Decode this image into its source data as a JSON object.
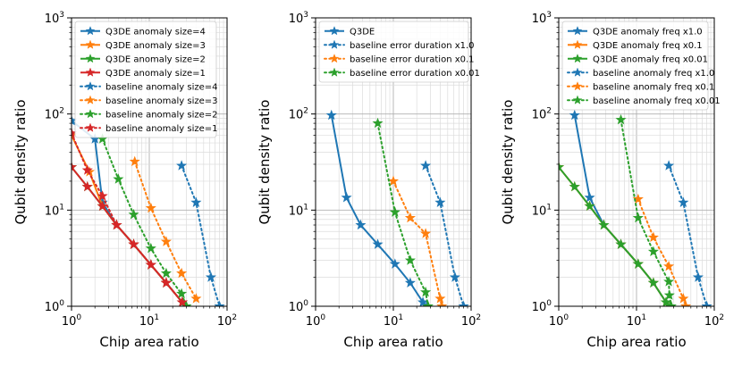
{
  "colors": {
    "blue": "#1f77b4",
    "orange": "#ff7f0e",
    "green": "#2ca02c",
    "red": "#d62728"
  },
  "chart_data": [
    {
      "type": "line",
      "xscale": "log",
      "yscale": "log",
      "xlim": [
        1,
        100
      ],
      "ylim": [
        1,
        1000
      ],
      "xlabel": "Chip area ratio",
      "ylabel": "Qubit density ratio",
      "xticks": [
        "10^0",
        "10^1",
        "10^2"
      ],
      "yticks": [
        "10^0",
        "10^1",
        "10^2",
        "10^3"
      ],
      "grid": true,
      "legend_position": "top-left",
      "series": [
        {
          "name": "Q3DE anomaly size=4",
          "color": "blue",
          "style": "solid",
          "points": [
            [
              1.0,
              85
            ],
            [
              2.0,
              55
            ],
            [
              2.5,
              12
            ],
            [
              3.8,
              7
            ],
            [
              6.3,
              4.4
            ],
            [
              10.5,
              2.7
            ],
            [
              16.5,
              1.75
            ],
            [
              26.5,
              1.1
            ]
          ]
        },
        {
          "name": "Q3DE anomaly size=3",
          "color": "orange",
          "style": "solid",
          "points": [
            [
              1.0,
              60
            ],
            [
              1.7,
              25
            ],
            [
              2.5,
              11
            ],
            [
              3.8,
              7
            ],
            [
              6.3,
              4.4
            ],
            [
              10.5,
              2.7
            ],
            [
              16.5,
              1.75
            ],
            [
              26.5,
              1.1
            ]
          ]
        },
        {
          "name": "Q3DE anomaly size=2",
          "color": "green",
          "style": "solid",
          "points": [
            [
              1.0,
              28
            ],
            [
              1.6,
              17.5
            ],
            [
              2.5,
              11
            ],
            [
              3.8,
              7
            ],
            [
              6.3,
              4.4
            ],
            [
              10.5,
              2.7
            ],
            [
              16.5,
              1.75
            ],
            [
              26.5,
              1.1
            ]
          ]
        },
        {
          "name": "Q3DE anomaly size=1",
          "color": "red",
          "style": "solid",
          "points": [
            [
              1.0,
              28
            ],
            [
              1.6,
              17.5
            ],
            [
              2.5,
              11
            ],
            [
              3.8,
              7
            ],
            [
              6.3,
              4.4
            ],
            [
              10.5,
              2.7
            ],
            [
              16.5,
              1.75
            ],
            [
              26.5,
              1.1
            ]
          ]
        },
        {
          "name": "baseline anomaly size=4",
          "color": "blue",
          "style": "dotted",
          "points": [
            [
              26,
              29
            ],
            [
              40,
              12
            ],
            [
              62,
              2.0
            ],
            [
              80,
              1.0
            ]
          ]
        },
        {
          "name": "baseline anomaly size=3",
          "color": "orange",
          "style": "dotted",
          "points": [
            [
              6.5,
              32
            ],
            [
              10.5,
              10.5
            ],
            [
              16.5,
              4.7
            ],
            [
              26,
              2.2
            ],
            [
              40,
              1.2
            ]
          ]
        },
        {
          "name": "baseline anomaly size=2",
          "color": "green",
          "style": "dotted",
          "points": [
            [
              2.5,
              55
            ],
            [
              4.0,
              21
            ],
            [
              6.3,
              9.0
            ],
            [
              10.5,
              4.0
            ],
            [
              16.5,
              2.2
            ],
            [
              26,
              1.35
            ],
            [
              30,
              1.0
            ]
          ]
        },
        {
          "name": "baseline anomaly size=1",
          "color": "red",
          "style": "dotted",
          "points": [
            [
              1.0,
              63
            ],
            [
              1.6,
              26
            ],
            [
              2.5,
              14
            ],
            [
              3.8,
              7
            ],
            [
              6.3,
              4.4
            ],
            [
              10.5,
              2.7
            ],
            [
              16.5,
              1.75
            ],
            [
              26.5,
              1.1
            ]
          ]
        }
      ]
    },
    {
      "type": "line",
      "xscale": "log",
      "yscale": "log",
      "xlim": [
        1,
        100
      ],
      "ylim": [
        1,
        1000
      ],
      "xlabel": "Chip area ratio",
      "ylabel": "Qubit density ratio",
      "xticks": [
        "10^0",
        "10^1",
        "10^2"
      ],
      "yticks": [
        "10^0",
        "10^1",
        "10^2",
        "10^3"
      ],
      "grid": true,
      "legend_position": "top-right",
      "series": [
        {
          "name": "Q3DE",
          "color": "blue",
          "style": "solid",
          "points": [
            [
              1.6,
              97
            ],
            [
              2.5,
              13.5
            ],
            [
              3.8,
              7
            ],
            [
              6.3,
              4.4
            ],
            [
              10.5,
              2.75
            ],
            [
              16.5,
              1.75
            ],
            [
              24,
              1.1
            ],
            [
              27,
              1.0
            ]
          ]
        },
        {
          "name": "baseline error duration x1.0",
          "color": "blue",
          "style": "dotted",
          "points": [
            [
              26,
              29
            ],
            [
              40,
              12
            ],
            [
              62,
              2.0
            ],
            [
              80,
              1.0
            ]
          ]
        },
        {
          "name": "baseline error duration x0.1",
          "color": "orange",
          "style": "dotted",
          "points": [
            [
              10,
              20
            ],
            [
              16.5,
              8.3
            ],
            [
              26,
              5.7
            ],
            [
              40,
              1.2
            ],
            [
              42,
              1.0
            ]
          ]
        },
        {
          "name": "baseline error duration x0.01",
          "color": "green",
          "style": "dotted",
          "points": [
            [
              6.3,
              80
            ],
            [
              10.5,
              9.5
            ],
            [
              16.5,
              3.0
            ],
            [
              26,
              1.4
            ],
            [
              28,
              1.0
            ]
          ]
        }
      ]
    },
    {
      "type": "line",
      "xscale": "log",
      "yscale": "log",
      "xlim": [
        1,
        100
      ],
      "ylim": [
        1,
        1000
      ],
      "xlabel": "Chip area ratio",
      "ylabel": "Qubit density ratio",
      "xticks": [
        "10^0",
        "10^1",
        "10^2"
      ],
      "yticks": [
        "10^0",
        "10^1",
        "10^2",
        "10^3"
      ],
      "grid": true,
      "legend_position": "top-right",
      "series": [
        {
          "name": "Q3DE anomaly freq x1.0",
          "color": "blue",
          "style": "solid",
          "points": [
            [
              1.6,
              97
            ],
            [
              2.5,
              13.5
            ],
            [
              3.8,
              7
            ],
            [
              6.3,
              4.4
            ],
            [
              10.5,
              2.75
            ],
            [
              16.5,
              1.75
            ],
            [
              24,
              1.1
            ],
            [
              27,
              1.0
            ]
          ]
        },
        {
          "name": "Q3DE anomaly freq x0.1",
          "color": "orange",
          "style": "solid",
          "points": [
            [
              1.0,
              28
            ],
            [
              1.6,
              17.5
            ],
            [
              2.5,
              11
            ],
            [
              3.8,
              7
            ],
            [
              6.3,
              4.4
            ],
            [
              10.5,
              2.75
            ],
            [
              16.5,
              1.75
            ],
            [
              24,
              1.1
            ],
            [
              27,
              1.0
            ]
          ]
        },
        {
          "name": "Q3DE anomaly freq x0.01",
          "color": "green",
          "style": "solid",
          "points": [
            [
              1.0,
              28
            ],
            [
              1.6,
              17.5
            ],
            [
              2.5,
              11
            ],
            [
              3.8,
              7
            ],
            [
              6.3,
              4.4
            ],
            [
              10.5,
              2.75
            ],
            [
              16.5,
              1.75
            ],
            [
              24,
              1.1
            ],
            [
              27,
              1.0
            ]
          ]
        },
        {
          "name": "baseline anomaly freq x1.0",
          "color": "blue",
          "style": "dotted",
          "points": [
            [
              26,
              29
            ],
            [
              40,
              12
            ],
            [
              62,
              2.0
            ],
            [
              80,
              1.0
            ]
          ]
        },
        {
          "name": "baseline anomaly freq x0.1",
          "color": "orange",
          "style": "dotted",
          "points": [
            [
              10.5,
              13
            ],
            [
              16.5,
              5.2
            ],
            [
              26,
              2.6
            ],
            [
              40,
              1.2
            ],
            [
              43,
              1.0
            ]
          ]
        },
        {
          "name": "baseline anomaly freq x0.01",
          "color": "green",
          "style": "dotted",
          "points": [
            [
              6.3,
              87
            ],
            [
              10.5,
              8.3
            ],
            [
              16.5,
              3.7
            ],
            [
              26,
              1.8
            ],
            [
              26.5,
              1.3
            ],
            [
              28,
              1.0
            ]
          ]
        }
      ]
    }
  ]
}
